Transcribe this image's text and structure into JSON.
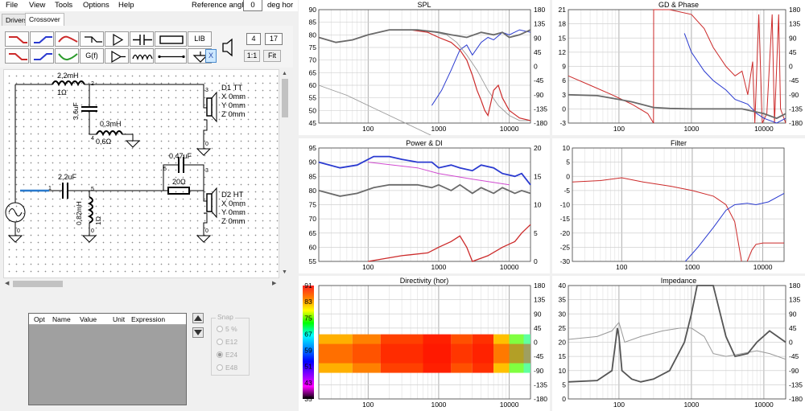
{
  "menu": {
    "items": [
      "File",
      "View",
      "Tools",
      "Options",
      "Help"
    ],
    "ref_label": "Reference angle",
    "ref_value": "0",
    "ref_unit": "deg hor"
  },
  "tabs": [
    "Drivers",
    "Crossover"
  ],
  "toolbar": {
    "lib": "LIB",
    "gf": "G(f)",
    "x": "X",
    "box1": "4",
    "box2": "17",
    "ratio": "1:1",
    "fit": "Fit"
  },
  "schematic": {
    "l1": "2,2mH",
    "r_l1": "1Ω",
    "c1": "3,6uF",
    "l2": "0,3mH",
    "r_l2": "0,6Ω",
    "c2": "2,2uF",
    "l3": "0,82mH",
    "r_l3": "1Ω",
    "c3": "0,47uF",
    "r1": "20Ω",
    "d1_name": "D1 TT",
    "d2_name": "D2 HT",
    "coords": [
      "X 0mm",
      "Y 0mm",
      "Z 0mm"
    ],
    "nodes": [
      "1",
      "2",
      "3",
      "4",
      "5",
      "0"
    ]
  },
  "parts_table": {
    "headers": [
      "Opt",
      "Name",
      "Value",
      "Unit",
      "Expression"
    ]
  },
  "snap": {
    "title": "Snap",
    "options": [
      "5 %",
      "E12",
      "E24",
      "E48"
    ],
    "selected": "E24"
  },
  "charts": {
    "spl": {
      "title": "SPL",
      "yleft": [
        "90",
        "85",
        "80",
        "75",
        "70",
        "65",
        "60",
        "55",
        "50",
        "45"
      ],
      "yright": [
        "180",
        "135",
        "90",
        "45",
        "0",
        "-45",
        "-90",
        "-135",
        "-180"
      ]
    },
    "gd": {
      "title": "GD & Phase",
      "yleft": [
        "21",
        "18",
        "15",
        "12",
        "9",
        "6",
        "3",
        "0",
        "-3"
      ],
      "yright": [
        "180",
        "135",
        "90",
        "45",
        "0",
        "-45",
        "-90",
        "-135",
        "-180"
      ]
    },
    "power": {
      "title": "Power & DI",
      "yleft": [
        "95",
        "90",
        "85",
        "80",
        "75",
        "70",
        "65",
        "60",
        "55"
      ],
      "yright": [
        "20",
        "15",
        "10",
        "5",
        "0"
      ]
    },
    "filter": {
      "title": "Filter",
      "yleft": [
        "10",
        "5",
        "0",
        "-5",
        "-10",
        "-15",
        "-20",
        "-25",
        "-30"
      ]
    },
    "directivity": {
      "title": "Directivity (hor)",
      "scale": [
        "91",
        "83",
        "75",
        "67",
        "59",
        "51",
        "43",
        "35"
      ],
      "yright": [
        "180",
        "135",
        "90",
        "45",
        "0",
        "-45",
        "-90",
        "-135",
        "-180"
      ]
    },
    "impedance": {
      "title": "Impedance",
      "yleft": [
        "40",
        "35",
        "30",
        "25",
        "20",
        "15",
        "10",
        "5",
        "0"
      ],
      "yright": [
        "180",
        "135",
        "90",
        "45",
        "0",
        "-45",
        "-90",
        "-135",
        "-180"
      ]
    },
    "xticks": [
      "100",
      "1000",
      "10000"
    ]
  },
  "colors": {
    "tt": "#cc2a2a",
    "ht": "#2a3ad0",
    "gray": "#777777",
    "pink": "#d04ad0"
  }
}
